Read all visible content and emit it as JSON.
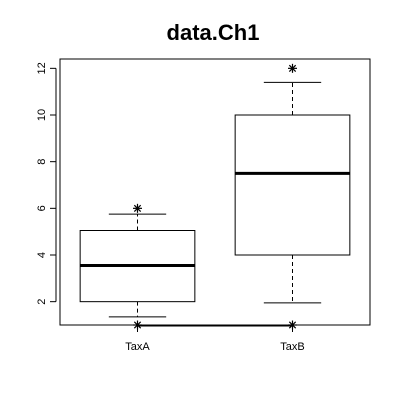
{
  "chart_data": {
    "type": "boxplot",
    "title": "data.Ch1",
    "xlabel": "",
    "ylabel": "",
    "ylim": [
      1,
      12.4
    ],
    "y_ticks": [
      "2",
      "4",
      "6",
      "8",
      "10",
      "12"
    ],
    "categories": [
      "TaxA",
      "TaxB"
    ],
    "boxes": [
      {
        "category": "TaxA",
        "whisker_low": 1.35,
        "q1": 2,
        "median": 3.55,
        "q3": 5.05,
        "whisker_high": 5.75,
        "outliers": [
          1,
          6
        ]
      },
      {
        "category": "TaxB",
        "whisker_low": 1.95,
        "q1": 4,
        "median": 7.5,
        "q3": 10,
        "whisker_high": 11.4,
        "outliers": [
          1,
          12
        ]
      }
    ],
    "outlier_marker": "asterisk",
    "grid": false,
    "colors": {
      "line": "#000000",
      "background": "#ffffff"
    }
  }
}
